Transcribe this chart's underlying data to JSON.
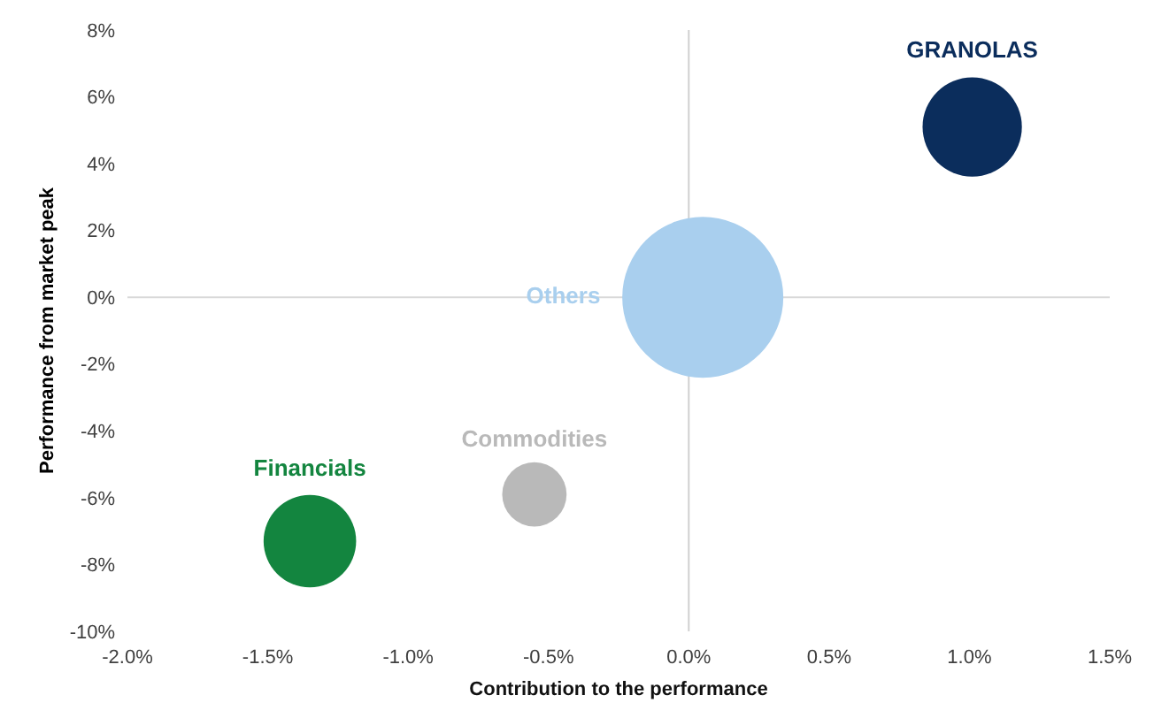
{
  "chart_data": {
    "type": "bubble",
    "xlabel": "Contribution to the performance",
    "ylabel": "Performance from market peak",
    "xlim": [
      -2.0,
      1.5
    ],
    "ylim": [
      -10,
      8
    ],
    "xticks": [
      {
        "value": -2.0,
        "label": "-2.0%"
      },
      {
        "value": -1.5,
        "label": "-1.5%"
      },
      {
        "value": -1.0,
        "label": "-1.0%"
      },
      {
        "value": -0.5,
        "label": "-0.5%"
      },
      {
        "value": 0.0,
        "label": "0.0%"
      },
      {
        "value": 0.5,
        "label": "0.5%"
      },
      {
        "value": 1.0,
        "label": "1.0%"
      },
      {
        "value": 1.5,
        "label": "1.5%"
      }
    ],
    "yticks": [
      {
        "value": 8,
        "label": "8%"
      },
      {
        "value": 6,
        "label": "6%"
      },
      {
        "value": 4,
        "label": "4%"
      },
      {
        "value": 2,
        "label": "2%"
      },
      {
        "value": 0,
        "label": "0%"
      },
      {
        "value": -2,
        "label": "-2%"
      },
      {
        "value": -4,
        "label": "-4%"
      },
      {
        "value": -6,
        "label": "-6%"
      },
      {
        "value": -8,
        "label": "-8%"
      },
      {
        "value": -10,
        "label": "-10%"
      }
    ],
    "grid": false,
    "legend": false,
    "ref_lines": [
      {
        "axis": "x",
        "value": 0,
        "color": "#d0d0d0"
      },
      {
        "axis": "y",
        "value": 0,
        "color": "#d9d9d9"
      }
    ],
    "series": [
      {
        "name": "GRANOLAS",
        "color": "#0b2d5c",
        "x": [
          1.01
        ],
        "values": [
          5.1
        ],
        "sizes": [
          0.38
        ]
      },
      {
        "name": "Others",
        "color": "#a9cfee",
        "x": [
          0.05
        ],
        "values": [
          0.0
        ],
        "sizes": [
          1
        ]
      },
      {
        "name": "Commodities",
        "color": "#b9b9b9",
        "x": [
          -0.55
        ],
        "values": [
          -5.9
        ],
        "sizes": [
          0.16
        ]
      },
      {
        "name": "Financials",
        "color": "#13853f",
        "x": [
          -1.35
        ],
        "values": [
          -7.3
        ],
        "sizes": [
          0.33
        ]
      }
    ]
  }
}
